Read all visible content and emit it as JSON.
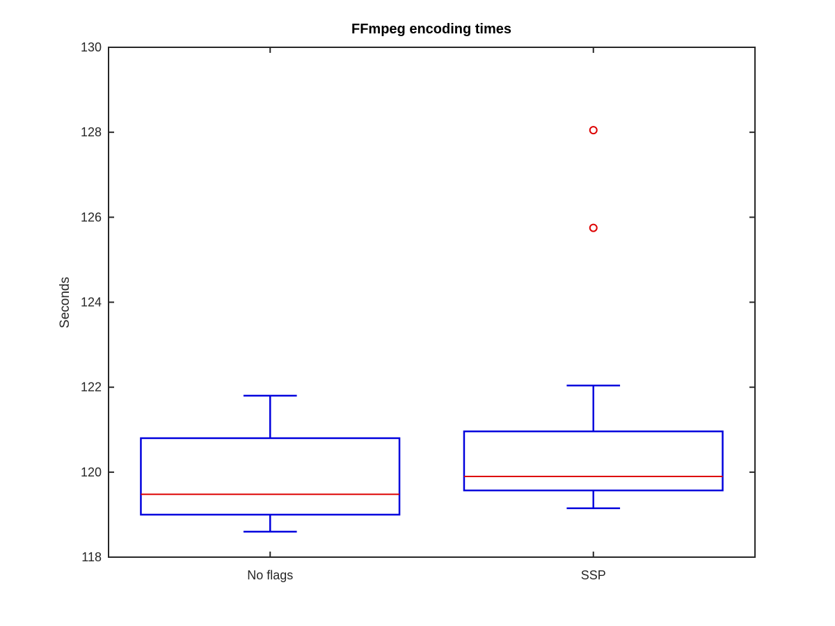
{
  "chart_data": {
    "type": "box",
    "title": "FFmpeg encoding times",
    "xlabel": "",
    "ylabel": "Seconds",
    "ylim": [
      118,
      130
    ],
    "yticks": [
      118,
      120,
      122,
      124,
      126,
      128,
      130
    ],
    "ytick_labels": [
      "118",
      "120",
      "122",
      "124",
      "126",
      "128",
      "130"
    ],
    "categories": [
      "No flags",
      "SSP"
    ],
    "boxes": [
      {
        "category": "No flags",
        "whisker_low": 118.6,
        "q1": 119.0,
        "median": 119.48,
        "q3": 120.8,
        "whisker_high": 121.8,
        "outliers": []
      },
      {
        "category": "SSP",
        "whisker_low": 119.15,
        "q1": 119.57,
        "median": 119.9,
        "q3": 120.96,
        "whisker_high": 122.04,
        "outliers": [
          125.75,
          128.05
        ]
      }
    ],
    "grid": false,
    "colors": {
      "box": "#0000dd",
      "median": "#dd0000",
      "outlier": "#dd0000",
      "axis": "#262626"
    }
  }
}
